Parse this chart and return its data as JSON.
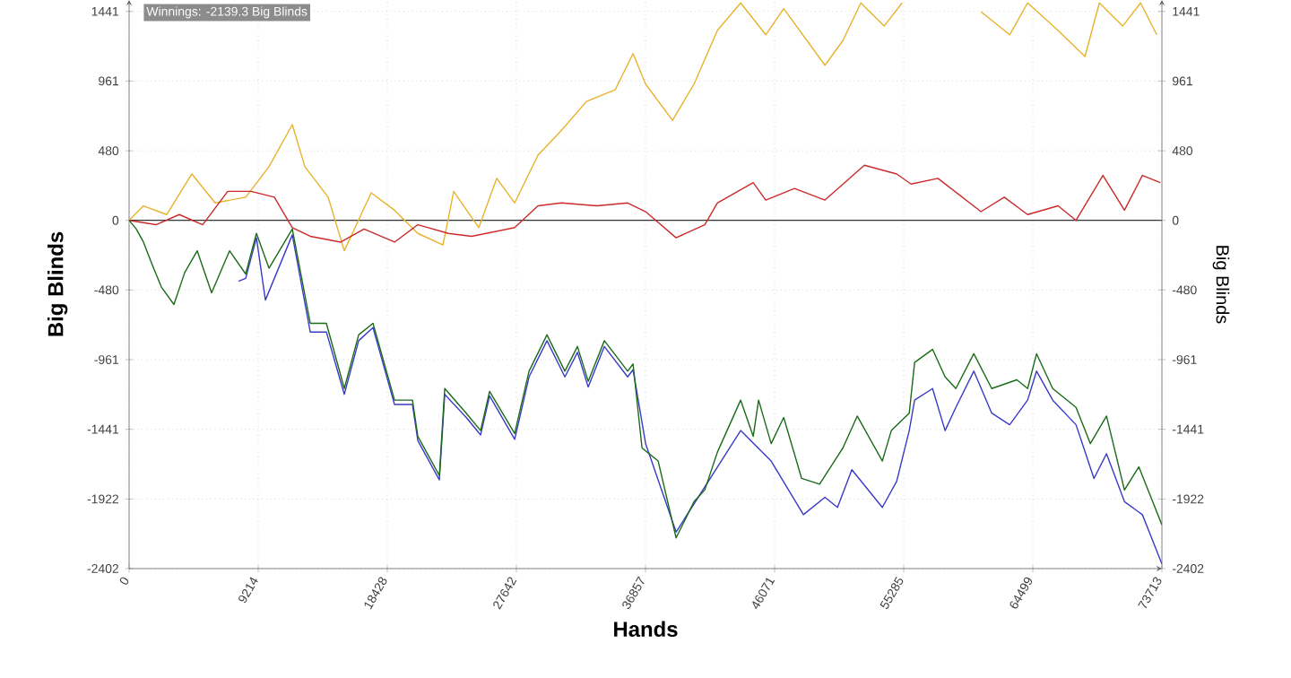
{
  "chart_data": {
    "type": "line",
    "xlabel": "Hands",
    "ylabel": "Big Blinds",
    "y2label": "Big Blinds",
    "annotations": [
      "Winnings: -2139.3 Big Blinds"
    ],
    "xlim": [
      0,
      73713
    ],
    "xticks": [
      0,
      9214,
      18428,
      27642,
      36857,
      46071,
      55285,
      64499,
      73713
    ],
    "ylim": [
      -2402,
      1520
    ],
    "yticks": [
      -2402,
      -1922,
      -1441,
      -961,
      -480,
      0,
      480,
      961,
      1441
    ],
    "y2lim": [
      -2402,
      1520
    ],
    "y2ticks": [
      -2402,
      -1922,
      -1441,
      -961,
      -480,
      0,
      480,
      961,
      1441
    ],
    "grid": true,
    "marker": "none",
    "line_style": "solid",
    "ref_lines": [
      {
        "axis": "y",
        "value": 0,
        "color": "#000000"
      }
    ],
    "series": [
      {
        "color": "#e8b22c",
        "x": [
          0,
          1024,
          2688,
          4480,
          6144,
          8320,
          9984,
          11648,
          12544,
          14208,
          15360,
          17280,
          18944,
          20608,
          22400,
          23168,
          24960,
          26240,
          27520,
          29184,
          30848,
          32640,
          34688,
          35968,
          36864,
          38784,
          40320,
          41984,
          43648,
          45440,
          46720,
          49664,
          50944,
          52224,
          53888,
          55168,
          58240,
          60800,
          62848,
          64128,
          66304,
          68224,
          69248,
          70912,
          72192,
          73344
        ],
        "values": [
          0,
          100,
          40,
          320,
          120,
          160,
          370,
          660,
          370,
          160,
          -210,
          190,
          70,
          -90,
          -170,
          200,
          -50,
          290,
          120,
          450,
          620,
          820,
          900,
          1150,
          940,
          690,
          940,
          1310,
          1500,
          1280,
          1460,
          1070,
          1240,
          1500,
          1340,
          1500,
          null,
          1440,
          1280,
          1500,
          1310,
          1130,
          1500,
          1340,
          1500,
          1280
        ]
      },
      {
        "color": "#cc2a2a",
        "x": [
          0,
          1920,
          3584,
          5248,
          7040,
          8704,
          10368,
          11648,
          12928,
          15104,
          16768,
          18944,
          20608,
          22784,
          24448,
          27520,
          29184,
          30848,
          33408,
          35584,
          36864,
          39040,
          41088,
          41984,
          44544,
          45440,
          47488,
          49664,
          52480,
          54784,
          55808,
          57728,
          60800,
          62464,
          64128,
          66304,
          67584,
          69504,
          71040,
          72320,
          73600
        ],
        "values": [
          0,
          -30,
          40,
          -30,
          200,
          200,
          160,
          -50,
          -110,
          -150,
          -60,
          -150,
          -30,
          -90,
          -110,
          -50,
          100,
          120,
          100,
          120,
          60,
          -120,
          -30,
          120,
          260,
          140,
          220,
          140,
          380,
          320,
          250,
          290,
          60,
          160,
          40,
          100,
          0,
          310,
          70,
          310,
          260
        ]
      },
      {
        "color": "#3a3ac8",
        "x": [
          7808,
          8320,
          9088,
          9728,
          11648,
          12928,
          14080,
          15360,
          16384,
          17408,
          18944,
          20224,
          20608,
          22144,
          22528,
          24064,
          25088,
          25728,
          27520,
          28544,
          29824,
          31104,
          32000,
          32768,
          33920,
          35584,
          35968,
          36864,
          39040,
          43648,
          45824,
          48128,
          49664,
          50560,
          51584,
          53760,
          54784,
          55680,
          56064,
          57344,
          58240,
          59008,
          60288,
          61568,
          62848,
          64128,
          64768,
          65920,
          67584,
          68864,
          69760,
          71040,
          72320,
          73713
        ],
        "values": [
          -420,
          -400,
          -120,
          -550,
          -100,
          -770,
          -770,
          -1200,
          -830,
          -740,
          -1270,
          -1270,
          -1520,
          -1790,
          -1200,
          -1360,
          -1480,
          -1210,
          -1510,
          -1080,
          -830,
          -1080,
          -910,
          -1150,
          -870,
          -1080,
          -1030,
          -1540,
          -2150,
          -1450,
          -1660,
          -2030,
          -1910,
          -1980,
          -1720,
          -1980,
          -1800,
          -1450,
          -1240,
          -1160,
          -1450,
          -1290,
          -1040,
          -1330,
          -1410,
          -1240,
          -1040,
          -1240,
          -1410,
          -1780,
          -1610,
          -1940,
          -2030,
          -2370
        ]
      },
      {
        "color": "#1a6b1a",
        "x": [
          0,
          512,
          1024,
          1664,
          2304,
          3200,
          3968,
          4864,
          5888,
          7168,
          8320,
          9088,
          9984,
          11648,
          12928,
          14080,
          15360,
          16384,
          17408,
          18944,
          20224,
          20608,
          22144,
          22528,
          24064,
          25088,
          25728,
          27520,
          28544,
          29824,
          31104,
          32000,
          32768,
          33920,
          35584,
          35968,
          36608,
          37760,
          39040,
          40320,
          41088,
          41984,
          43648,
          44544,
          44928,
          45824,
          46720,
          48000,
          49280,
          50944,
          51968,
          53760,
          54400,
          55680,
          56064,
          57344,
          58240,
          59008,
          60288,
          61568,
          63360,
          64128,
          64768,
          65920,
          67584,
          68608,
          69760,
          71040,
          72064,
          73713
        ],
        "values": [
          0,
          -60,
          -150,
          -310,
          -460,
          -580,
          -360,
          -210,
          -500,
          -210,
          -370,
          -90,
          -330,
          -60,
          -710,
          -710,
          -1160,
          -790,
          -710,
          -1240,
          -1240,
          -1490,
          -1760,
          -1160,
          -1330,
          -1450,
          -1180,
          -1470,
          -1040,
          -790,
          -1040,
          -870,
          -1110,
          -830,
          -1040,
          -990,
          -1570,
          -1660,
          -2190,
          -1940,
          -1860,
          -1600,
          -1240,
          -1490,
          -1240,
          -1540,
          -1360,
          -1780,
          -1820,
          -1570,
          -1350,
          -1660,
          -1450,
          -1330,
          -980,
          -890,
          -1080,
          -1160,
          -920,
          -1160,
          -1100,
          -1160,
          -920,
          -1160,
          -1290,
          -1540,
          -1350,
          -1860,
          -1700,
          -2100
        ]
      }
    ]
  }
}
